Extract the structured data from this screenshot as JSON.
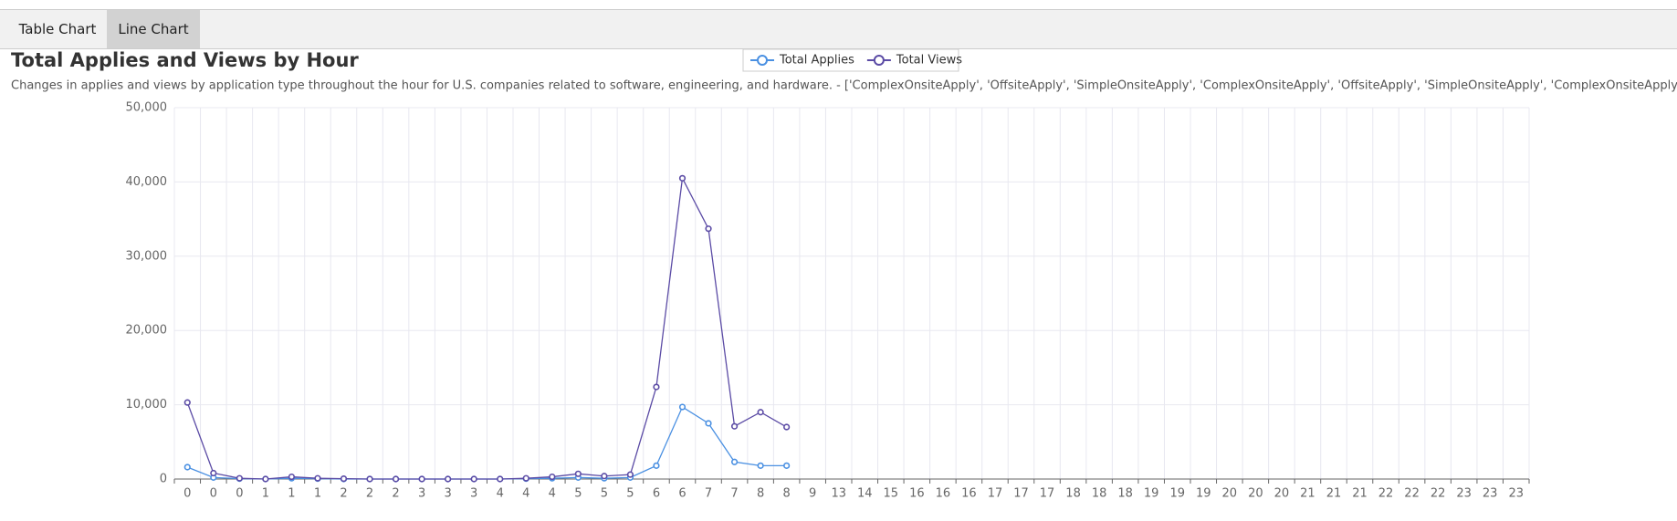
{
  "tabs": [
    "Table Chart",
    "Line Chart"
  ],
  "chart_data": {
    "type": "line",
    "title": "Total Applies and Views by Hour",
    "subtitle": "Changes in applies and views by application type throughout the hour for U.S. companies related to software, engineering, and hardware. - ['ComplexOnsiteApply', 'OffsiteApply', 'SimpleOnsiteApply', 'ComplexOnsiteApply', 'OffsiteApply', 'SimpleOnsiteApply', 'ComplexOnsiteApply', 'Offsite",
    "categories": [
      "0",
      "0",
      "0",
      "1",
      "1",
      "1",
      "2",
      "2",
      "2",
      "3",
      "3",
      "3",
      "4",
      "4",
      "4",
      "5",
      "5",
      "5",
      "6",
      "6",
      "7",
      "7",
      "8",
      "8",
      "9",
      "13",
      "14",
      "15",
      "16",
      "16",
      "16",
      "17",
      "17",
      "17",
      "18",
      "18",
      "18",
      "19",
      "19",
      "19",
      "20",
      "20",
      "20",
      "21",
      "21",
      "21",
      "22",
      "22",
      "22",
      "23",
      "23",
      "23"
    ],
    "series": [
      {
        "name": "Total Applies",
        "color": "#4a90e2",
        "values": [
          1600,
          200,
          50,
          0,
          100,
          50,
          0,
          0,
          0,
          0,
          0,
          0,
          0,
          50,
          100,
          200,
          100,
          200,
          1800,
          9700,
          7500,
          2300,
          1800,
          1800,
          null,
          null,
          null,
          null,
          null,
          null,
          null,
          null,
          null,
          null,
          null,
          null,
          null,
          null,
          null,
          null,
          null,
          null,
          null,
          null,
          null,
          null,
          null,
          null,
          null,
          null,
          null,
          null
        ]
      },
      {
        "name": "Total Views",
        "color": "#5b4ba5",
        "values": [
          10300,
          800,
          100,
          0,
          300,
          100,
          50,
          0,
          0,
          0,
          0,
          0,
          0,
          100,
          300,
          700,
          400,
          600,
          12400,
          40500,
          33700,
          7100,
          9000,
          7000,
          null,
          null,
          null,
          null,
          null,
          null,
          null,
          null,
          null,
          null,
          null,
          null,
          null,
          null,
          null,
          null,
          null,
          null,
          null,
          null,
          null,
          null,
          null,
          null,
          null,
          null,
          null,
          null
        ]
      }
    ],
    "ylim": [
      0,
      50000
    ],
    "yticks": [
      0,
      {
        "value": 10000,
        "label": "10,000"
      },
      {
        "value": 20000,
        "label": "20,000"
      },
      {
        "value": 30000,
        "label": "30,000"
      },
      {
        "value": 40000,
        "label": "40,000"
      },
      {
        "value": 50000,
        "label": "50,000"
      }
    ],
    "grid": true,
    "legend": "top"
  }
}
